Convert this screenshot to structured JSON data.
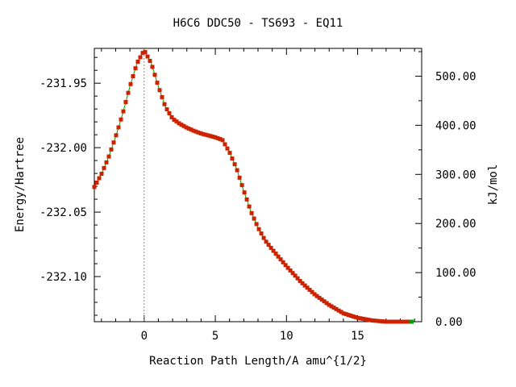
{
  "chart_data": {
    "type": "line",
    "title": "H6C6   DDC50 - TS693 - EQ11",
    "xlabel": "Reaction Path Length/A amu^{1/2}",
    "ylabel": "Energy/Hartree",
    "y2label": "kJ/mol",
    "xlim": [
      -3.5,
      19.5
    ],
    "ylim": [
      -232.135,
      -231.923
    ],
    "y2lim": [
      0.0,
      556.6
    ],
    "grid": false,
    "x_ticks": [
      0,
      5,
      10,
      15
    ],
    "x_tick_labels": [
      "0",
      "5",
      "10",
      "15"
    ],
    "y_ticks": [
      -231.95,
      -232.0,
      -232.05,
      -232.1
    ],
    "y_tick_labels": [
      "-231.95",
      "-232.00",
      "-232.05",
      "-232.10"
    ],
    "y2_ticks": [
      0,
      100,
      200,
      300,
      400,
      500
    ],
    "y2_tick_labels": [
      "0.00",
      "100.00",
      "200.00",
      "300.00",
      "400.00",
      "500.00"
    ],
    "ts_marker_x": 0,
    "line_color": "#00a000",
    "marker_color": "#cc2200",
    "series": [
      {
        "x": [
          -3.5,
          -3.0,
          -2.5,
          -2.0,
          -1.5,
          -1.0,
          -0.5,
          0.0,
          0.5,
          1.0,
          1.5,
          2.0,
          2.5,
          3.0,
          3.5,
          4.0,
          4.5,
          5.0,
          5.5,
          6.0,
          6.5,
          7.0,
          7.5,
          8.0,
          8.5,
          9.0,
          10.0,
          11.0,
          12.0,
          13.0,
          14.0,
          15.0,
          16.0,
          17.0,
          18.0,
          18.8
        ],
        "y": [
          -232.0305,
          -232.0205,
          -232.0075,
          -231.9915,
          -231.9735,
          -231.9525,
          -231.9345,
          -231.9245,
          -231.9345,
          -231.9525,
          -231.9685,
          -231.9775,
          -231.9815,
          -231.9845,
          -231.987,
          -231.989,
          -231.9905,
          -231.992,
          -231.994,
          -232.0035,
          -232.0165,
          -232.0335,
          -232.0495,
          -232.062,
          -232.072,
          -232.079,
          -232.092,
          -232.104,
          -232.114,
          -232.122,
          -232.1285,
          -232.132,
          -232.134,
          -232.135,
          -232.135,
          -232.135
        ]
      }
    ]
  }
}
